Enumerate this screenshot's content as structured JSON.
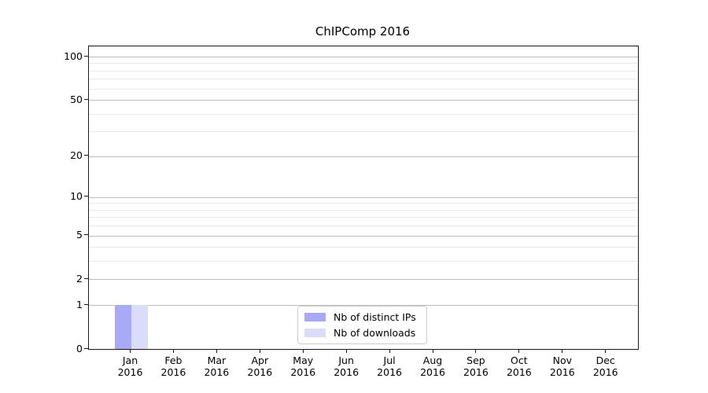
{
  "chart_data": {
    "type": "bar",
    "title": "ChIPComp 2016",
    "xlabel": "",
    "ylabel": "",
    "year_label": "2016",
    "months": [
      "Jan",
      "Feb",
      "Mar",
      "Apr",
      "May",
      "Jun",
      "Jul",
      "Aug",
      "Sep",
      "Oct",
      "Nov",
      "Dec"
    ],
    "series": [
      {
        "name": "Nb of distinct IPs",
        "color": "#a9aaf6",
        "values": [
          1,
          0,
          0,
          0,
          0,
          0,
          0,
          0,
          0,
          0,
          0,
          0
        ]
      },
      {
        "name": "Nb of downloads",
        "color": "#dadcfa",
        "values": [
          1,
          0,
          0,
          0,
          0,
          0,
          0,
          0,
          0,
          0,
          0,
          0
        ]
      }
    ],
    "yscale": "log1p",
    "ylim": [
      0,
      100
    ],
    "ytick_values": [
      0,
      1,
      2,
      5,
      10,
      20,
      50,
      100
    ],
    "ytick_labels": [
      "0",
      "1",
      "2",
      "5",
      "10",
      "20",
      "50",
      "100"
    ],
    "yminor_values": [
      3,
      4,
      6,
      7,
      8,
      9,
      30,
      40,
      60,
      70,
      80,
      90
    ],
    "grid": "horizontal",
    "legend_position": "bottom-center"
  },
  "colors": {
    "background": "#ffffff",
    "spine": "#1a1a1a",
    "grid_major": "#bdbdbd",
    "grid_minor": "#e9e9e9",
    "text": "#000000"
  }
}
